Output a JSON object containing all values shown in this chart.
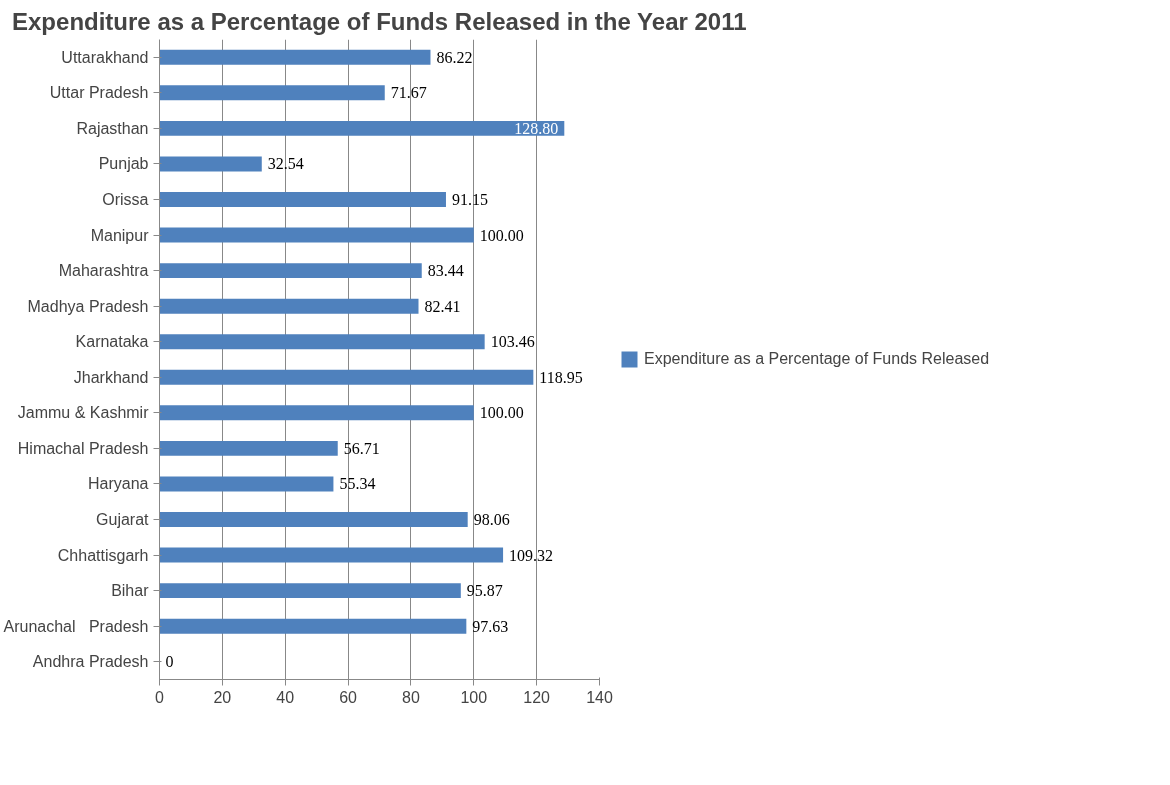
{
  "chart_data": {
    "type": "bar",
    "orientation": "horizontal",
    "title": "Expenditure as a Percentage of Funds Released in the Year 2011",
    "categories": [
      "Uttarakhand",
      "Uttar Pradesh",
      "Rajasthan",
      "Punjab",
      "Orissa",
      "Manipur",
      "Maharashtra",
      "Madhya Pradesh",
      "Karnataka",
      "Jharkhand",
      "Jammu & Kashmir",
      "Himachal Pradesh",
      "Haryana",
      "Gujarat",
      "Chhattisgarh",
      "Bihar",
      "Arunachal   Pradesh",
      "Andhra Pradesh"
    ],
    "series": [
      {
        "name": "Expenditure as a Percentage of Funds Released",
        "color": "#4f81bd",
        "values": [
          86.22,
          71.67,
          128.8,
          32.54,
          91.15,
          100.0,
          83.44,
          82.41,
          103.46,
          118.95,
          100.0,
          56.71,
          55.34,
          98.06,
          109.32,
          95.87,
          97.63,
          0
        ],
        "value_labels": [
          "86.22",
          "71.67",
          "128.80",
          "32.54",
          "91.15",
          "100.00",
          "83.44",
          "82.41",
          "103.46",
          "118.95",
          "100.00",
          "56.71",
          "55.34",
          "98.06",
          "109.32",
          "95.87",
          "97.63",
          "0"
        ]
      }
    ],
    "xlim": [
      0,
      140
    ],
    "xticks": [
      0,
      20,
      40,
      60,
      80,
      100,
      120,
      140
    ],
    "grid": "x",
    "legend": "right"
  }
}
